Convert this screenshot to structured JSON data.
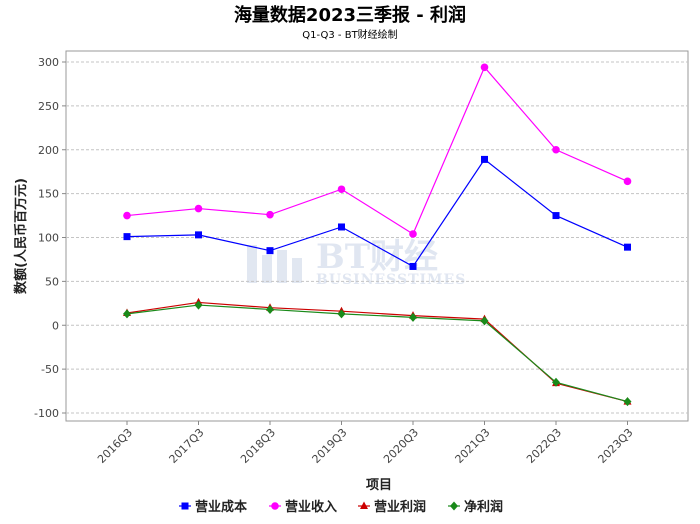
{
  "chart_data": {
    "type": "line",
    "title": "海量数据2023三季报 - 利润",
    "subtitle": "Q1-Q3 - BT财经绘制",
    "xlabel": "项目",
    "ylabel": "数额(人民币百万元)",
    "categories": [
      "2016Q3",
      "2017Q3",
      "2018Q3",
      "2019Q3",
      "2020Q3",
      "2021Q3",
      "2022Q3",
      "2023Q3"
    ],
    "ylim": [
      -105,
      305
    ],
    "yticks": [
      -100,
      -50,
      0,
      50,
      100,
      150,
      200,
      250,
      300
    ],
    "grid": true,
    "legend_position": "bottom",
    "series": [
      {
        "name": "营业成本",
        "color": "#0000ff",
        "marker": "square",
        "values": [
          101,
          103,
          85,
          112,
          67,
          189,
          125,
          89
        ]
      },
      {
        "name": "营业收入",
        "color": "#ff00ff",
        "marker": "circle",
        "values": [
          125,
          133,
          126,
          155,
          104,
          294,
          200,
          164
        ]
      },
      {
        "name": "营业利润",
        "color": "#cc0000",
        "marker": "triangle",
        "values": [
          14,
          26,
          20,
          16,
          11,
          7,
          -66,
          -87
        ]
      },
      {
        "name": "净利润",
        "color": "#1a8a1a",
        "marker": "diamond",
        "values": [
          13,
          23,
          18,
          13,
          9,
          5,
          -65,
          -87
        ]
      }
    ]
  },
  "watermark": {
    "text_cn": "BT财经",
    "text_en": "BUSINESSTIMES"
  }
}
